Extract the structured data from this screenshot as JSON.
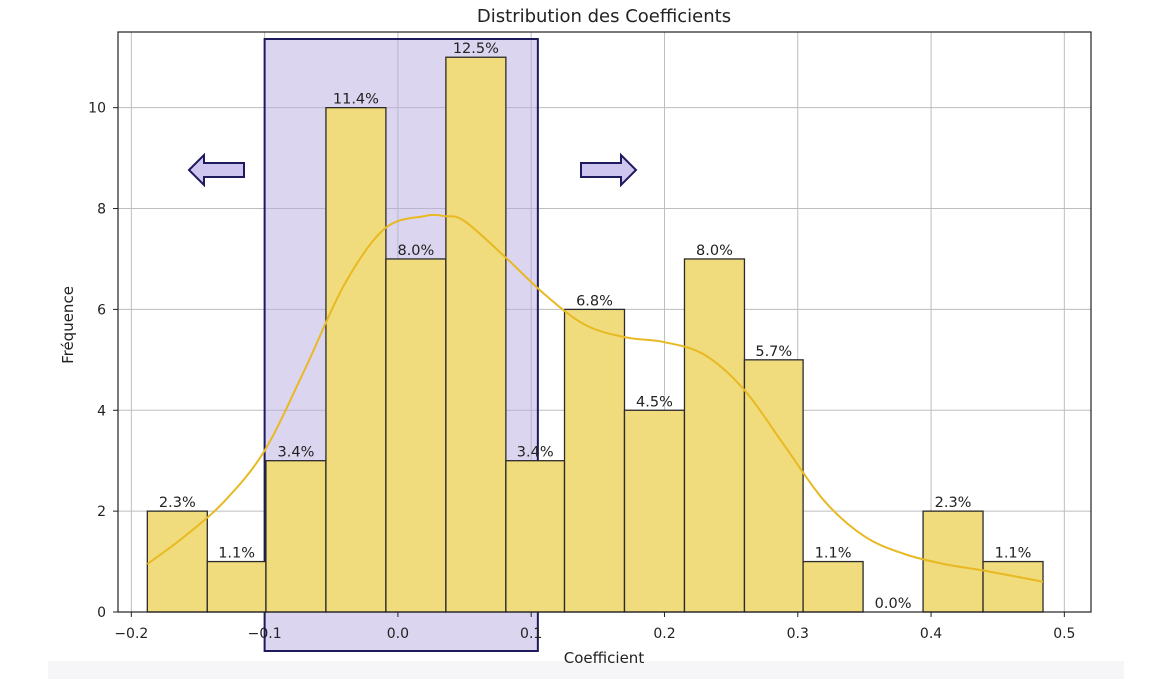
{
  "chart_data": {
    "type": "bar",
    "title": "Distribution des Coefficients",
    "xlabel": "Coefficient",
    "ylabel": "Fréquence",
    "xlim": [
      -0.21,
      0.52
    ],
    "ylim": [
      0,
      11.5
    ],
    "xticks": [
      -0.2,
      -0.1,
      0.0,
      0.1,
      0.2,
      0.3,
      0.4,
      0.5
    ],
    "xtick_labels": [
      "−0.2",
      "−0.1",
      "0.0",
      "0.1",
      "0.2",
      "0.3",
      "0.4",
      "0.5"
    ],
    "yticks": [
      0,
      2,
      4,
      6,
      8,
      10
    ],
    "ytick_labels": [
      "0",
      "2",
      "4",
      "6",
      "8",
      "10"
    ],
    "grid": true,
    "bins": [
      {
        "x0": -0.188,
        "x1": -0.143,
        "count": 2,
        "label": "2.3%"
      },
      {
        "x0": -0.143,
        "x1": -0.099,
        "count": 1,
        "label": "1.1%"
      },
      {
        "x0": -0.099,
        "x1": -0.054,
        "count": 3,
        "label": "3.4%"
      },
      {
        "x0": -0.054,
        "x1": -0.009,
        "count": 10,
        "label": "11.4%"
      },
      {
        "x0": -0.009,
        "x1": 0.036,
        "count": 7,
        "label": "8.0%"
      },
      {
        "x0": 0.036,
        "x1": 0.081,
        "count": 11,
        "label": "12.5%"
      },
      {
        "x0": 0.081,
        "x1": 0.125,
        "count": 3,
        "label": "3.4%"
      },
      {
        "x0": 0.125,
        "x1": 0.17,
        "count": 6,
        "label": "6.8%"
      },
      {
        "x0": 0.17,
        "x1": 0.215,
        "count": 4,
        "label": "4.5%"
      },
      {
        "x0": 0.215,
        "x1": 0.26,
        "count": 7,
        "label": "8.0%"
      },
      {
        "x0": 0.26,
        "x1": 0.304,
        "count": 5,
        "label": "5.7%"
      },
      {
        "x0": 0.304,
        "x1": 0.349,
        "count": 1,
        "label": "1.1%"
      },
      {
        "x0": 0.349,
        "x1": 0.394,
        "count": 0,
        "label": "0.0%"
      },
      {
        "x0": 0.394,
        "x1": 0.439,
        "count": 2,
        "label": "2.3%"
      },
      {
        "x0": 0.439,
        "x1": 0.484,
        "count": 1,
        "label": "1.1%"
      }
    ],
    "kde": {
      "x": [
        -0.188,
        -0.16,
        -0.13,
        -0.1,
        -0.07,
        -0.04,
        -0.01,
        0.02,
        0.035,
        0.05,
        0.08,
        0.11,
        0.14,
        0.17,
        0.2,
        0.23,
        0.26,
        0.29,
        0.32,
        0.35,
        0.38,
        0.41,
        0.44,
        0.484
      ],
      "y": [
        0.95,
        1.5,
        2.2,
        3.2,
        4.8,
        6.5,
        7.6,
        7.85,
        7.85,
        7.75,
        7.05,
        6.3,
        5.7,
        5.45,
        5.35,
        5.1,
        4.4,
        3.3,
        2.2,
        1.5,
        1.15,
        0.95,
        0.82,
        0.6
      ]
    },
    "highlight_range": [
      -0.1,
      0.105
    ],
    "colors": {
      "bar_fill": "#f0dc7c",
      "bar_edge": "#2b2b2b",
      "kde_line": "#e8b923",
      "highlight_fill": "#b8ace0",
      "highlight_edge": "#1e1a5e",
      "arrow_fill": "#cfc6f0",
      "arrow_edge": "#1e1a5e",
      "grid": "#bdbdbd"
    },
    "annotations": [
      {
        "type": "arrow",
        "direction": "left",
        "icon": "arrow-left-icon"
      },
      {
        "type": "arrow",
        "direction": "right",
        "icon": "arrow-right-icon"
      }
    ]
  }
}
